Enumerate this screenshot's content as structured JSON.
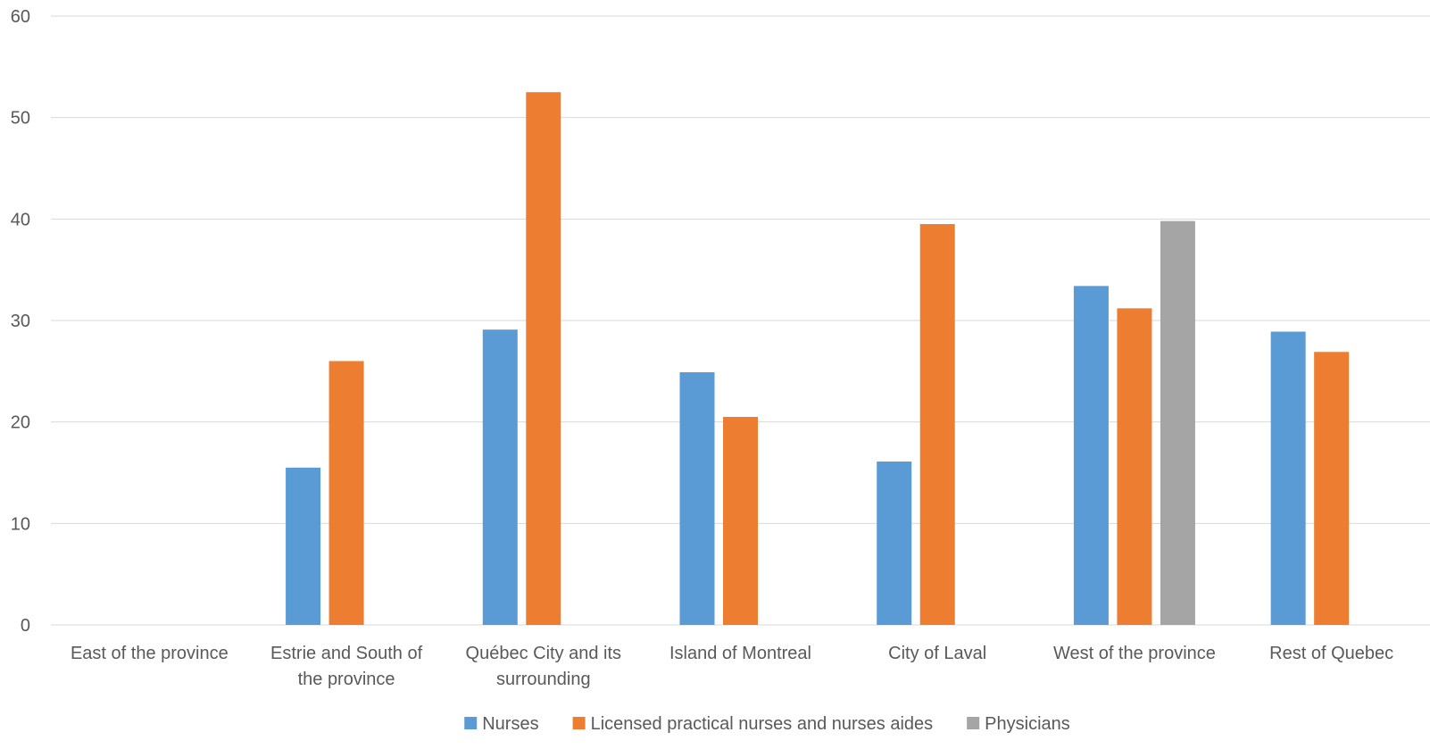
{
  "chart_data": {
    "type": "bar",
    "title": "",
    "xlabel": "",
    "ylabel": "",
    "ylim": [
      0,
      60
    ],
    "yticks": [
      0,
      10,
      20,
      30,
      40,
      50,
      60
    ],
    "grid": true,
    "legend_position": "bottom",
    "categories": [
      [
        "East of the province"
      ],
      [
        "Estrie and South of",
        "the province"
      ],
      [
        "Québec City and its",
        "surrounding"
      ],
      [
        "Island of Montreal"
      ],
      [
        "City of Laval"
      ],
      [
        "West of the province"
      ],
      [
        "Rest of Quebec"
      ]
    ],
    "series": [
      {
        "name": "Nurses",
        "color": "#5B9BD5",
        "values": [
          null,
          15.5,
          29.1,
          24.9,
          16.1,
          33.4,
          28.9
        ]
      },
      {
        "name": "Licensed practical nurses and nurses aides",
        "color": "#ED7D31",
        "values": [
          null,
          26.0,
          52.5,
          20.5,
          39.5,
          31.2,
          26.9
        ]
      },
      {
        "name": "Physicians",
        "color": "#A5A5A5",
        "values": [
          null,
          null,
          null,
          null,
          null,
          39.8,
          null
        ]
      }
    ]
  }
}
